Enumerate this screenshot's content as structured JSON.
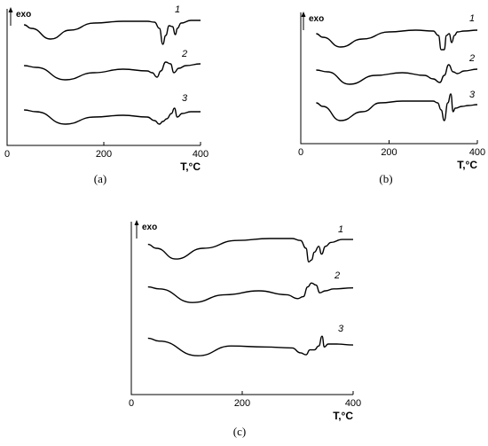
{
  "chart_data": [
    {
      "type": "line",
      "caption": "(a)",
      "xlabel": "T,°C",
      "ylabel": "exo",
      "xlim": [
        0,
        400
      ],
      "xticks": [
        0,
        200,
        400
      ],
      "series": [
        {
          "name": "1",
          "x": [
            35,
            50,
            90,
            130,
            180,
            240,
            290,
            305,
            315,
            322,
            328,
            335,
            342,
            348,
            352,
            360,
            380,
            400
          ],
          "y": [
            0.2,
            0.0,
            -0.6,
            -0.1,
            0.3,
            0.4,
            0.4,
            0.35,
            0.0,
            -0.9,
            -0.4,
            0.15,
            0.1,
            -0.35,
            0.0,
            0.3,
            0.45,
            0.45
          ]
        },
        {
          "name": "2",
          "x": [
            35,
            60,
            120,
            180,
            240,
            290,
            300,
            310,
            318,
            328,
            338,
            345,
            355,
            370,
            400
          ],
          "y": [
            0.2,
            0.1,
            -0.6,
            -0.2,
            0.0,
            -0.1,
            -0.2,
            -0.45,
            -0.1,
            0.4,
            0.3,
            -0.2,
            0.05,
            0.2,
            0.3
          ]
        },
        {
          "name": "3",
          "x": [
            35,
            60,
            120,
            180,
            240,
            290,
            305,
            315,
            322,
            330,
            340,
            346,
            352,
            362,
            380,
            400
          ],
          "y": [
            0.2,
            0.1,
            -0.6,
            -0.2,
            -0.1,
            -0.2,
            -0.4,
            -0.6,
            -0.45,
            -0.3,
            0.0,
            0.3,
            -0.2,
            0.0,
            0.1,
            0.1
          ]
        }
      ]
    },
    {
      "type": "line",
      "caption": "(b)",
      "xlabel": "T,°C",
      "ylabel": "exo",
      "xlim": [
        0,
        400
      ],
      "xticks": [
        0,
        200,
        400
      ],
      "series": [
        {
          "name": "1",
          "x": [
            35,
            50,
            90,
            140,
            200,
            260,
            300,
            312,
            318,
            325,
            330,
            336,
            342,
            348,
            355,
            370,
            400
          ],
          "y": [
            0.2,
            0.0,
            -0.55,
            -0.1,
            0.3,
            0.4,
            0.35,
            0.1,
            -0.7,
            -0.7,
            0.1,
            0.2,
            -0.3,
            0.1,
            0.3,
            0.35,
            0.4
          ]
        },
        {
          "name": "2",
          "x": [
            35,
            60,
            110,
            170,
            230,
            280,
            300,
            315,
            325,
            335,
            345,
            355,
            370,
            400
          ],
          "y": [
            0.2,
            0.1,
            -0.6,
            -0.1,
            0.05,
            -0.1,
            -0.3,
            -0.5,
            -0.1,
            0.5,
            0.1,
            0.0,
            0.15,
            0.25
          ]
        },
        {
          "name": "3",
          "x": [
            35,
            50,
            90,
            140,
            180,
            230,
            280,
            300,
            310,
            318,
            325,
            333,
            340,
            345,
            350,
            365,
            380,
            400
          ],
          "y": [
            0.4,
            0.2,
            -0.6,
            -0.1,
            0.4,
            0.5,
            0.5,
            0.5,
            0.4,
            0.0,
            -0.6,
            0.4,
            0.9,
            -0.1,
            0.1,
            0.2,
            0.25,
            0.3
          ]
        }
      ]
    },
    {
      "type": "line",
      "caption": "(c)",
      "xlabel": "T,°C",
      "ylabel": "exo",
      "xlim": [
        0,
        400
      ],
      "xticks": [
        0,
        200,
        400
      ],
      "series": [
        {
          "name": "1",
          "x": [
            30,
            45,
            80,
            130,
            190,
            250,
            290,
            305,
            315,
            320,
            325,
            330,
            338,
            343,
            350,
            360,
            380,
            400
          ],
          "y": [
            0.2,
            0.0,
            -0.55,
            0.0,
            0.4,
            0.5,
            0.5,
            0.4,
            0.0,
            -0.7,
            -0.6,
            -0.2,
            0.1,
            -0.3,
            0.1,
            0.3,
            0.45,
            0.45
          ]
        },
        {
          "name": "2",
          "x": [
            30,
            50,
            110,
            170,
            230,
            280,
            300,
            310,
            318,
            325,
            333,
            340,
            350,
            365,
            400
          ],
          "y": [
            0.2,
            0.1,
            -0.6,
            -0.2,
            0.0,
            -0.2,
            -0.4,
            -0.3,
            0.2,
            0.4,
            0.3,
            -0.1,
            0.0,
            0.1,
            0.15
          ]
        },
        {
          "name": "3",
          "x": [
            30,
            50,
            120,
            180,
            240,
            290,
            305,
            315,
            322,
            330,
            338,
            344,
            348,
            355,
            370,
            400
          ],
          "y": [
            0.3,
            0.15,
            -0.6,
            -0.1,
            -0.15,
            -0.2,
            -0.45,
            -0.55,
            -0.3,
            -0.3,
            -0.1,
            0.4,
            -0.15,
            0.0,
            0.0,
            -0.05
          ]
        }
      ]
    }
  ]
}
